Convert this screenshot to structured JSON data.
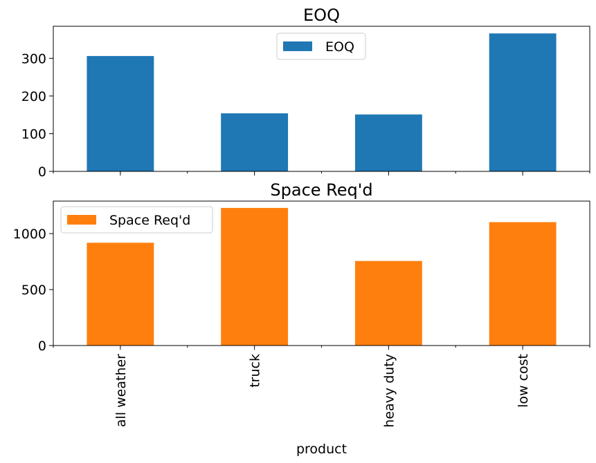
{
  "chart_data": [
    {
      "type": "bar",
      "title": "EOQ",
      "categories": [
        "all weather",
        "truck",
        "heavy duty",
        "low cost"
      ],
      "series": [
        {
          "name": "EOQ",
          "color": "#1f77b4",
          "values": [
            306,
            154,
            151,
            366
          ]
        }
      ],
      "ylim": [
        0,
        385
      ],
      "yticks": [
        0,
        100,
        200,
        300
      ],
      "ytick_labels": [
        "0",
        "100",
        "200",
        "300"
      ],
      "legend_position": "top-center",
      "show_xtick_labels": false,
      "xlabel": "",
      "ylabel": "",
      "grid": false
    },
    {
      "type": "bar",
      "title": "Space Req'd",
      "categories": [
        "all weather",
        "truck",
        "heavy duty",
        "low cost"
      ],
      "series": [
        {
          "name": "Space Req'd",
          "color": "#ff7f0e",
          "values": [
            918,
            1229,
            755,
            1102
          ]
        }
      ],
      "ylim": [
        0,
        1290
      ],
      "yticks": [
        0,
        500,
        1000
      ],
      "ytick_labels": [
        "0",
        "500",
        "1000"
      ],
      "legend_position": "top-left",
      "show_xtick_labels": true,
      "xlabel": "product",
      "ylabel": "",
      "grid": false
    }
  ]
}
